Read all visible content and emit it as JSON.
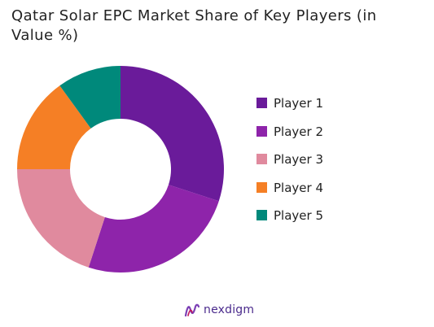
{
  "chart_data": {
    "type": "pie",
    "title": "Qatar Solar EPC Market Share of Key Players (in Value %)",
    "donut": true,
    "categories": [
      "Player 1",
      "Player 2",
      "Player 3",
      "Player 4",
      "Player 5"
    ],
    "values": [
      30,
      25,
      20,
      15,
      10
    ],
    "colors": [
      "#6a1b9a",
      "#8e24aa",
      "#e08a9e",
      "#f57f25",
      "#00897b"
    ],
    "start_angle_deg": 0,
    "direction": "clockwise",
    "legend_position": "right"
  },
  "brand": {
    "name": "nexdigm"
  }
}
